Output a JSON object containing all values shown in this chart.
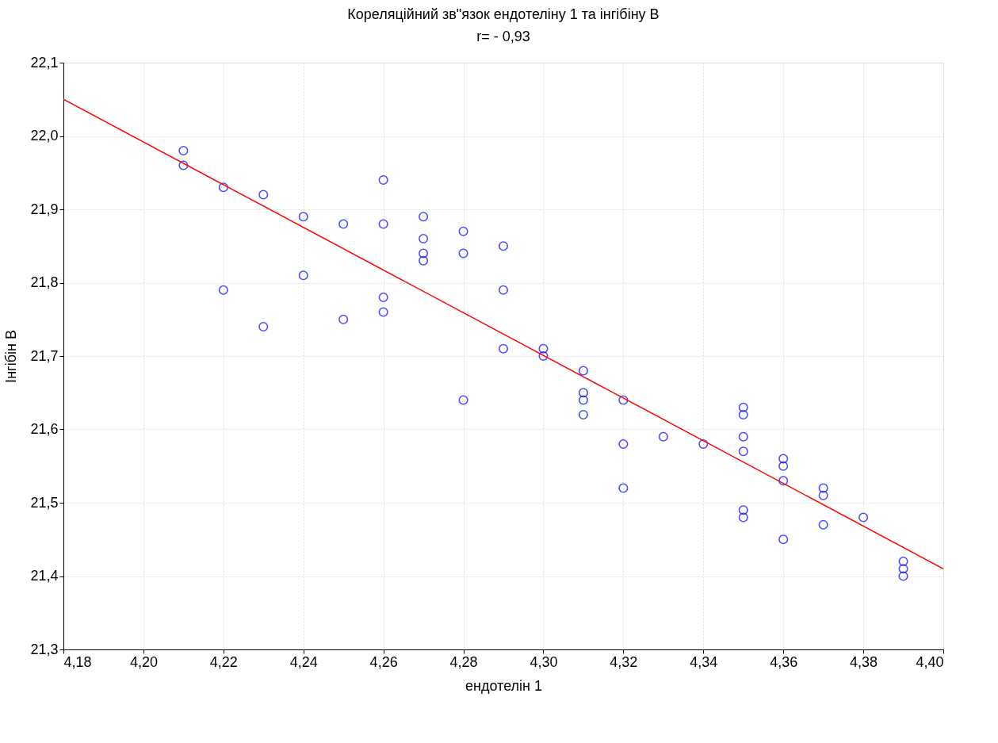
{
  "chart_data": {
    "type": "scatter",
    "title": "Кореляційний зв\"язок ендотеліну 1 та інгібіну В",
    "subtitle": "r= - 0,93",
    "xlabel": "ендотелін 1",
    "ylabel": "Інгібін В",
    "xlim": [
      4.18,
      4.4
    ],
    "ylim": [
      21.3,
      22.1
    ],
    "xticks": [
      {
        "value": 4.18,
        "label": "4,18"
      },
      {
        "value": 4.2,
        "label": "4,20"
      },
      {
        "value": 4.22,
        "label": "4,22"
      },
      {
        "value": 4.24,
        "label": "4,24"
      },
      {
        "value": 4.26,
        "label": "4,26"
      },
      {
        "value": 4.28,
        "label": "4,28"
      },
      {
        "value": 4.3,
        "label": "4,30"
      },
      {
        "value": 4.32,
        "label": "4,32"
      },
      {
        "value": 4.34,
        "label": "4,34"
      },
      {
        "value": 4.36,
        "label": "4,36"
      },
      {
        "value": 4.38,
        "label": "4,38"
      },
      {
        "value": 4.4,
        "label": "4,40"
      }
    ],
    "yticks": [
      {
        "value": 21.3,
        "label": "21,3"
      },
      {
        "value": 21.4,
        "label": "21,4"
      },
      {
        "value": 21.5,
        "label": "21,5"
      },
      {
        "value": 21.6,
        "label": "21,6"
      },
      {
        "value": 21.7,
        "label": "21,7"
      },
      {
        "value": 21.8,
        "label": "21,8"
      },
      {
        "value": 21.9,
        "label": "21,9"
      },
      {
        "value": 22.0,
        "label": "22,0"
      },
      {
        "value": 22.1,
        "label": "22,1"
      }
    ],
    "grid": true,
    "series": [
      {
        "color": "#0000ff",
        "marker": "circle",
        "x": [
          4.21,
          4.21,
          4.22,
          4.22,
          4.23,
          4.23,
          4.24,
          4.24,
          4.25,
          4.25,
          4.26,
          4.26,
          4.26,
          4.26,
          4.27,
          4.27,
          4.27,
          4.27,
          4.28,
          4.28,
          4.28,
          4.29,
          4.29,
          4.29,
          4.3,
          4.3,
          4.31,
          4.31,
          4.31,
          4.31,
          4.32,
          4.32,
          4.32,
          4.33,
          4.34,
          4.35,
          4.35,
          4.35,
          4.35,
          4.35,
          4.35,
          4.36,
          4.36,
          4.36,
          4.36,
          4.37,
          4.37,
          4.37,
          4.38,
          4.39,
          4.39,
          4.39
        ],
        "values": [
          21.98,
          21.96,
          21.93,
          21.79,
          21.92,
          21.74,
          21.89,
          21.81,
          21.88,
          21.75,
          21.94,
          21.88,
          21.78,
          21.76,
          21.89,
          21.86,
          21.84,
          21.83,
          21.87,
          21.84,
          21.64,
          21.85,
          21.79,
          21.71,
          21.71,
          21.7,
          21.68,
          21.65,
          21.64,
          21.62,
          21.64,
          21.58,
          21.52,
          21.59,
          21.58,
          21.63,
          21.62,
          21.59,
          21.57,
          21.49,
          21.48,
          21.56,
          21.55,
          21.53,
          21.45,
          21.52,
          21.51,
          21.47,
          21.48,
          21.42,
          21.41,
          21.4
        ]
      },
      {
        "type": "line",
        "marker": "none",
        "color": "#ff0000",
        "x": [
          4.18,
          4.4
        ],
        "values": [
          22.05,
          21.41
        ]
      }
    ]
  }
}
